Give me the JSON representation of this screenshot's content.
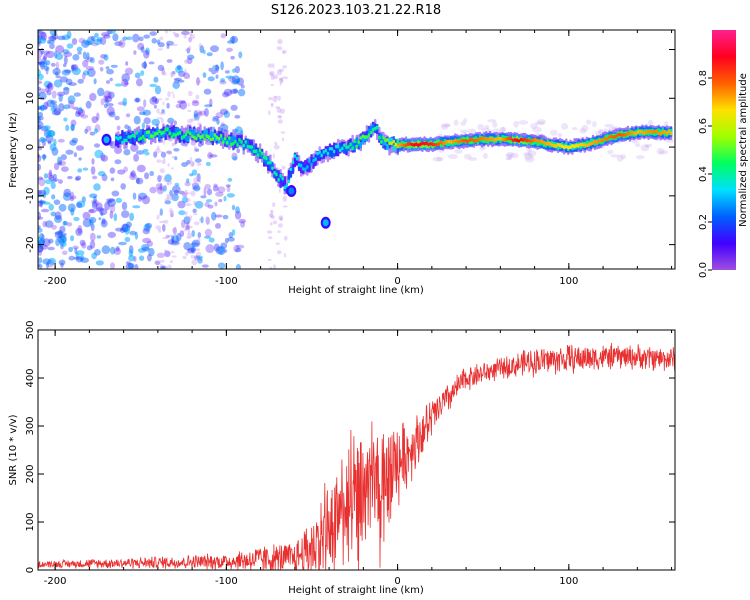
{
  "title": "S126.2023.103.21.22.R18",
  "colors": {
    "line": "#e83030",
    "frame": "#000000",
    "background": "#ffffff"
  },
  "chart_data": [
    {
      "type": "heatmap",
      "xlabel": "Height of straight line (km)",
      "ylabel": "Frequency (Hz)",
      "xlim": [
        -210,
        162
      ],
      "ylim": [
        -25,
        24
      ],
      "xticks": [
        -200,
        -100,
        0,
        100
      ],
      "yticks": [
        -20,
        -10,
        0,
        10,
        20
      ],
      "colorbar": {
        "label": "Normalized spectral amplitude",
        "range": [
          0,
          1
        ],
        "ticks": [
          0.0,
          0.2,
          0.4,
          0.6,
          0.8
        ],
        "colors": [
          "#a050e0",
          "#4000ff",
          "#0060ff",
          "#00e0ff",
          "#00ff60",
          "#a0ff00",
          "#ffe000",
          "#ff6000",
          "#ff0020",
          "#ff2090"
        ]
      },
      "ridge": [
        {
          "x": -165,
          "y": 1.5,
          "a": 0.35
        },
        {
          "x": -155,
          "y": 2.0,
          "a": 0.4
        },
        {
          "x": -145,
          "y": 2.5,
          "a": 0.5
        },
        {
          "x": -135,
          "y": 3.0,
          "a": 0.45
        },
        {
          "x": -125,
          "y": 2.5,
          "a": 0.45
        },
        {
          "x": -115,
          "y": 2.5,
          "a": 0.5
        },
        {
          "x": -105,
          "y": 2.0,
          "a": 0.5
        },
        {
          "x": -95,
          "y": 1.0,
          "a": 0.45
        },
        {
          "x": -88,
          "y": 0.5,
          "a": 0.4
        },
        {
          "x": -80,
          "y": -1.5,
          "a": 0.45
        },
        {
          "x": -75,
          "y": -3.5,
          "a": 0.4
        },
        {
          "x": -70,
          "y": -6.0,
          "a": 0.4
        },
        {
          "x": -65,
          "y": -8.0,
          "a": 0.35
        },
        {
          "x": -60,
          "y": -2.5,
          "a": 0.35
        },
        {
          "x": -55,
          "y": -4.5,
          "a": 0.3
        },
        {
          "x": -50,
          "y": -3.0,
          "a": 0.3
        },
        {
          "x": -45,
          "y": -1.5,
          "a": 0.35
        },
        {
          "x": -40,
          "y": -1.0,
          "a": 0.35
        },
        {
          "x": -35,
          "y": -0.5,
          "a": 0.35
        },
        {
          "x": -30,
          "y": 0.0,
          "a": 0.4
        },
        {
          "x": -25,
          "y": 0.5,
          "a": 0.45
        },
        {
          "x": -20,
          "y": 1.5,
          "a": 0.5
        },
        {
          "x": -16,
          "y": 3.5,
          "a": 0.45
        },
        {
          "x": -13,
          "y": 4.5,
          "a": 0.4
        },
        {
          "x": -10,
          "y": 1.5,
          "a": 0.45
        },
        {
          "x": -5,
          "y": 0.5,
          "a": 0.55
        },
        {
          "x": 0,
          "y": 0.5,
          "a": 0.7
        },
        {
          "x": 10,
          "y": 0.5,
          "a": 0.9
        },
        {
          "x": 20,
          "y": 0.6,
          "a": 0.85
        },
        {
          "x": 30,
          "y": 1.0,
          "a": 0.7
        },
        {
          "x": 40,
          "y": 1.3,
          "a": 0.8
        },
        {
          "x": 50,
          "y": 1.6,
          "a": 0.75
        },
        {
          "x": 60,
          "y": 1.6,
          "a": 0.7
        },
        {
          "x": 70,
          "y": 1.5,
          "a": 0.9
        },
        {
          "x": 80,
          "y": 1.2,
          "a": 0.75
        },
        {
          "x": 90,
          "y": 0.5,
          "a": 0.7
        },
        {
          "x": 100,
          "y": 0.0,
          "a": 0.65
        },
        {
          "x": 110,
          "y": 0.5,
          "a": 0.7
        },
        {
          "x": 120,
          "y": 1.5,
          "a": 0.75
        },
        {
          "x": 130,
          "y": 2.5,
          "a": 0.8
        },
        {
          "x": 140,
          "y": 3.0,
          "a": 0.7
        },
        {
          "x": 150,
          "y": 3.0,
          "a": 0.75
        },
        {
          "x": 160,
          "y": 3.0,
          "a": 0.7
        }
      ],
      "spots": [
        {
          "x": -62,
          "y": -9.0,
          "a": 0.25
        },
        {
          "x": -42,
          "y": -15.5,
          "a": 0.3
        },
        {
          "x": -170,
          "y": 1.5,
          "a": 0.3
        }
      ]
    },
    {
      "type": "line",
      "xlabel": "Height of straight line (km)",
      "ylabel": "SNR (10 * v/v)",
      "xlim": [
        -210,
        162
      ],
      "ylim": [
        0,
        500
      ],
      "xticks": [
        -200,
        -100,
        0,
        100
      ],
      "yticks": [
        0,
        100,
        200,
        300,
        400,
        500
      ],
      "series": [
        {
          "name": "SNR",
          "envelope": {
            "x": [
              -210,
              -150,
              -100,
              -80,
              -60,
              -45,
              -35,
              -25,
              -15,
              -5,
              5,
              15,
              25,
              40,
              60,
              80,
              100,
              130,
              162
            ],
            "base": [
              12,
              15,
              18,
              22,
              25,
              60,
              120,
              150,
              180,
              200,
              240,
              290,
              340,
              400,
              420,
              435,
              440,
              445,
              440
            ],
            "amp": [
              8,
              14,
              20,
              35,
              40,
              100,
              150,
              150,
              150,
              120,
              80,
              60,
              40,
              30,
              25,
              35,
              35,
              30,
              30
            ]
          }
        }
      ]
    }
  ]
}
